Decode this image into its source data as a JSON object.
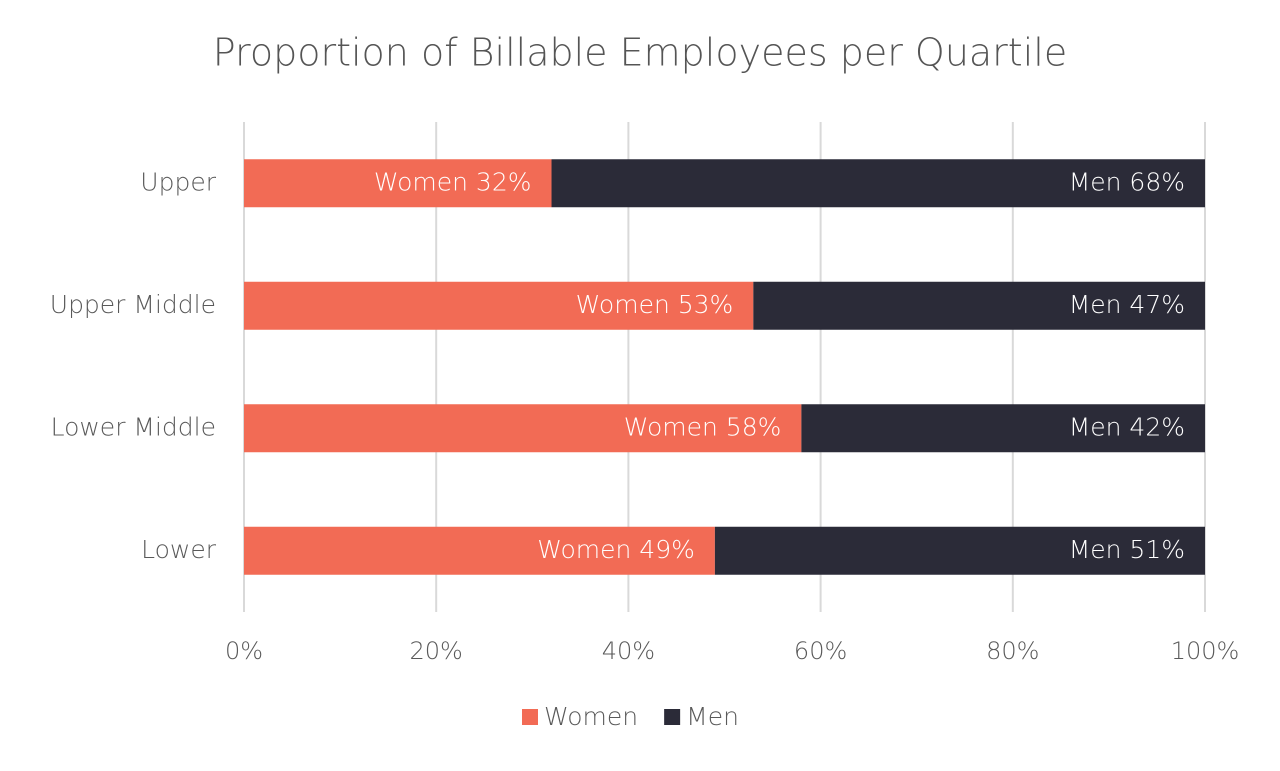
{
  "chart_data": {
    "type": "stacked-bar-horizontal",
    "title": "Proportion of Billable Employees per Quartile",
    "categories": [
      "Upper",
      "Upper Middle",
      "Lower Middle",
      "Lower"
    ],
    "series": [
      {
        "name": "Women",
        "color": "#f26b55",
        "values": [
          32,
          53,
          58,
          49
        ],
        "value_labels": [
          "Women 32%",
          "Women 53%",
          "Women 58%",
          "Women 49%"
        ]
      },
      {
        "name": "Men",
        "color": "#2b2b38",
        "values": [
          68,
          47,
          42,
          51
        ],
        "value_labels": [
          "Men 68%",
          "Men 47%",
          "Men 42%",
          "Men 51%"
        ]
      }
    ],
    "xlim": [
      0,
      100
    ],
    "xticks": [
      {
        "value": 0,
        "label": "0%"
      },
      {
        "value": 20,
        "label": "20%"
      },
      {
        "value": 40,
        "label": "40%"
      },
      {
        "value": 60,
        "label": "60%"
      },
      {
        "value": 80,
        "label": "80%"
      },
      {
        "value": 100,
        "label": "100%"
      }
    ],
    "grid": true,
    "legend": "bottom"
  }
}
